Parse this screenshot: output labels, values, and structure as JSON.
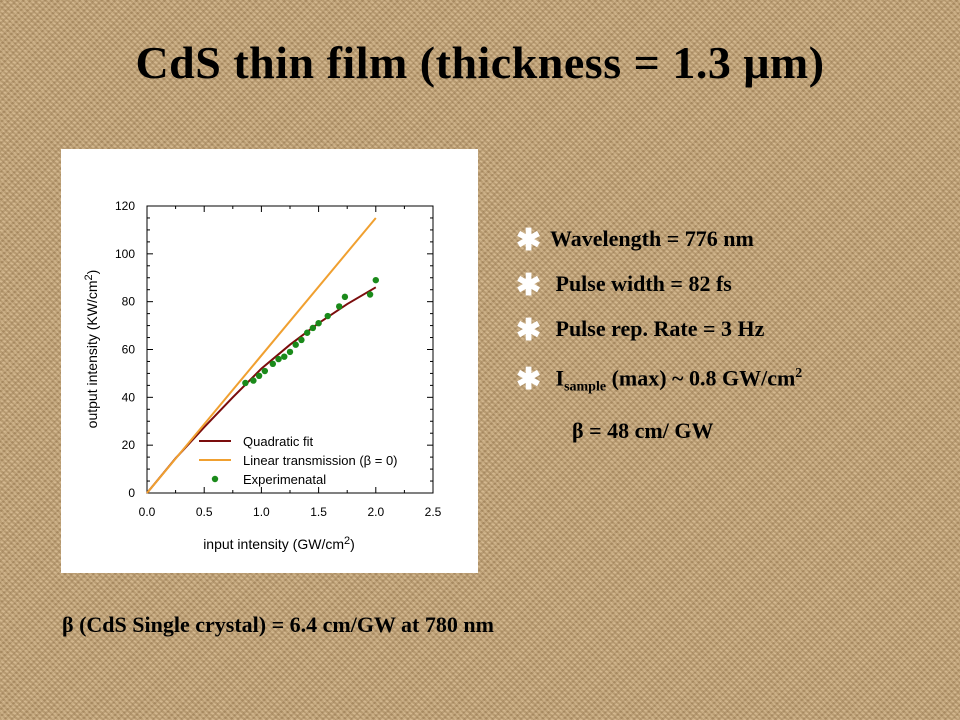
{
  "slide": {
    "title": "CdS thin film (thickness = 1.3 μm)",
    "bullets": [
      {
        "text": "Wavelength = 776 nm"
      },
      {
        "text": " Pulse width = 82 fs"
      },
      {
        "text": " Pulse rep. Rate = 3 Hz"
      },
      {
        "text_main": " I",
        "text_sub": "sample",
        "text_tail": " (max) ~ 0.8 GW/cm",
        "text_sup": "2"
      }
    ],
    "bullet_icon": "asterisk-icon",
    "beta_result": "β = 48 cm/ GW",
    "footer": "β (CdS Single crystal) = 6.4 cm/GW at 780 nm"
  },
  "chart_data": {
    "type": "scatter",
    "xlabel_main": "input intensity (GW/cm",
    "xlabel_sup": "2",
    "xlabel_tail": ")",
    "ylabel_main": "output intensity (KW/cm",
    "ylabel_sup": "2",
    "ylabel_tail": ")",
    "xlim": [
      0,
      2.5
    ],
    "ylim": [
      0,
      120
    ],
    "x_ticks": [
      "0.0",
      "0.5",
      "1.0",
      "1.5",
      "2.0",
      "2.5"
    ],
    "y_ticks": [
      "0",
      "20",
      "40",
      "60",
      "80",
      "100",
      "120"
    ],
    "grid": false,
    "legend_position": "bottom-left",
    "series": [
      {
        "name": "Quadratic fit",
        "kind": "line",
        "color": "#7b0d0d",
        "x": [
          0,
          0.25,
          0.5,
          0.75,
          1.0,
          1.25,
          1.5,
          1.75,
          2.0
        ],
        "y": [
          0,
          14.5,
          27.5,
          40,
          52,
          62,
          71,
          79,
          86
        ]
      },
      {
        "name": "Linear transmission (β = 0)",
        "kind": "line",
        "color": "#f0a030",
        "x": [
          0,
          2.0
        ],
        "y": [
          0,
          115
        ]
      },
      {
        "name": "Experimenatal",
        "kind": "scatter",
        "color": "#1a8a1a",
        "x": [
          0.86,
          0.93,
          0.98,
          1.03,
          1.1,
          1.15,
          1.2,
          1.25,
          1.3,
          1.35,
          1.4,
          1.45,
          1.5,
          1.58,
          1.68,
          1.73,
          1.95,
          2.0
        ],
        "y": [
          46,
          47,
          49,
          51,
          54,
          56,
          57,
          59,
          62,
          64,
          67,
          69,
          71,
          74,
          78,
          82,
          83,
          89
        ]
      }
    ]
  }
}
